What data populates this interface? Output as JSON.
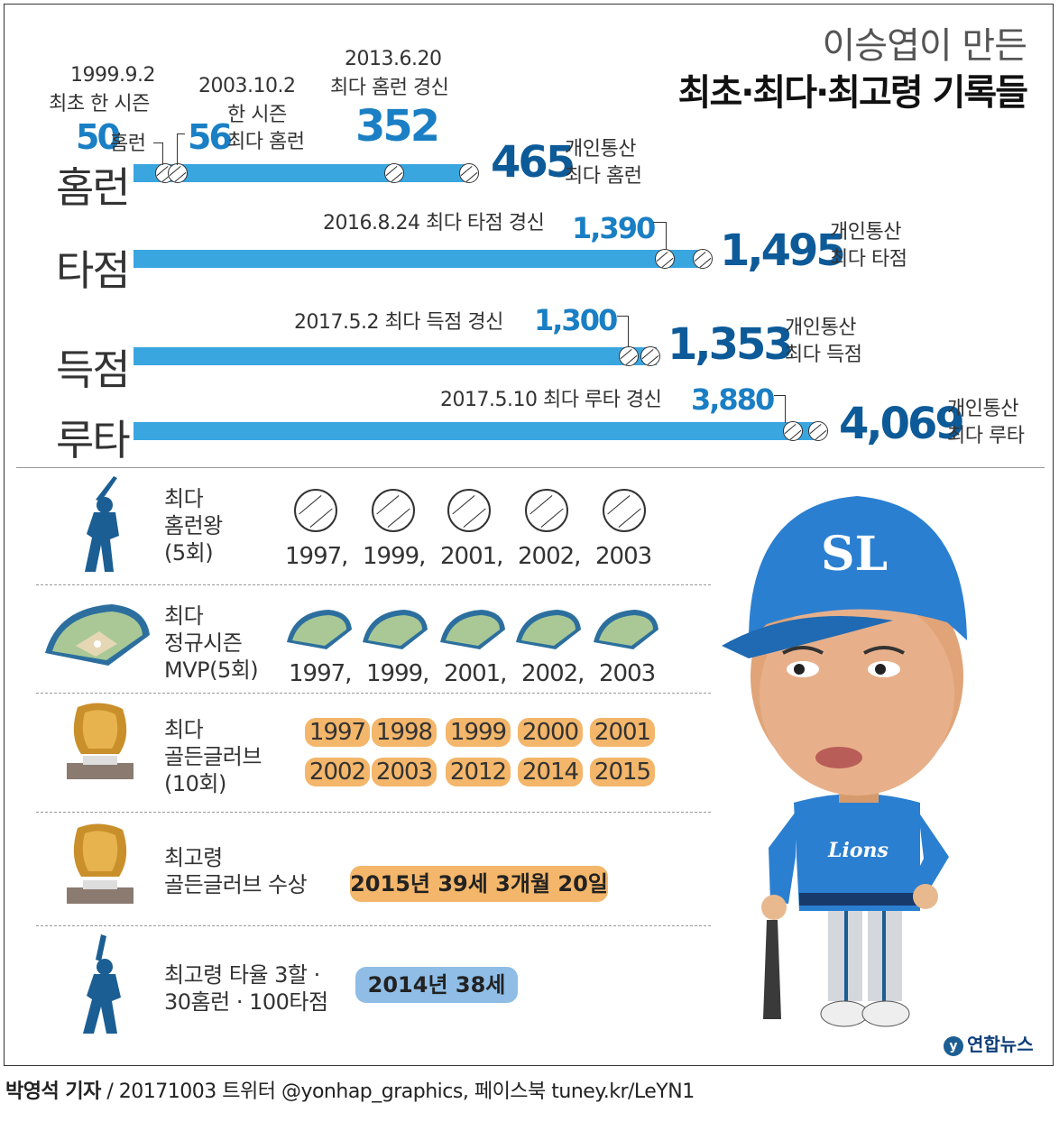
{
  "title": {
    "sub": "이승엽이 만든",
    "main": "최초·최다·최고령 기록들"
  },
  "chart_data": {
    "type": "bar",
    "categories": [
      "홈런",
      "타점",
      "득점",
      "루타"
    ],
    "values": [
      465,
      1495,
      1353,
      4069
    ],
    "milestones": {
      "homerun": [
        {
          "value": 50,
          "label_value": "50",
          "unit": "홈런",
          "date": "1999.9.2",
          "desc": "최초 한 시즌"
        },
        {
          "value": 56,
          "label_value": "56",
          "date": "2003.10.2",
          "desc1": "한 시즌",
          "desc2": "최다 홈런"
        },
        {
          "value": 352,
          "label_value": "352",
          "date": "2013.6.20",
          "desc": "최다 홈런 경신"
        },
        {
          "value": 465,
          "label_value": "465",
          "desc1": "개인통산",
          "desc2": "최다 홈런"
        }
      ],
      "rbi": [
        {
          "value": 1390,
          "label_value": "1,390",
          "desc": "2016.8.24  최다 타점 경신"
        },
        {
          "value": 1495,
          "label_value": "1,495",
          "desc1": "개인통산",
          "desc2": "최다 타점"
        }
      ],
      "runs": [
        {
          "value": 1300,
          "label_value": "1,300",
          "desc": "2017.5.2   최다 득점 경신"
        },
        {
          "value": 1353,
          "label_value": "1,353",
          "desc1": "개인통산",
          "desc2": "최다 득점"
        }
      ],
      "bases": [
        {
          "value": 3880,
          "label_value": "3,880",
          "desc": "2017.5.10  최다 루타 경신"
        },
        {
          "value": 4069,
          "label_value": "4,069",
          "desc1": "개인통산",
          "desc2": "최다 루타"
        }
      ]
    }
  },
  "sections": {
    "hr_king": {
      "line1": "최다",
      "line2": "홈런왕",
      "line3": "(5회)",
      "years": [
        "1997,",
        "1999,",
        "2001,",
        "2002,",
        "2003"
      ]
    },
    "mvp": {
      "line1": "최다",
      "line2": "정규시즌",
      "line3": "MVP(5회)",
      "years": [
        "1997,",
        "1999,",
        "2001,",
        "2002,",
        "2003"
      ]
    },
    "golden_glove": {
      "line1": "최다",
      "line2": "골든글러브",
      "line3": "(10회)",
      "years_row1": [
        "1997",
        "1998",
        "1999",
        "2000",
        "2001"
      ],
      "years_row2": [
        "2002",
        "2003",
        "2012",
        "2014",
        "2015"
      ]
    },
    "oldest_gg": {
      "line1": "최고령",
      "line2": "골든글러브 수상",
      "value": "2015년 39세 3개월 20일"
    },
    "oldest_330": {
      "line1": "최고령 타율 3할 ·",
      "line2": "30홈런 · 100타점",
      "value": "2014년 38세"
    }
  },
  "player": {
    "cap_logo": "SL",
    "jersey": "Lions"
  },
  "logo": {
    "text": "연합뉴스"
  },
  "footer": {
    "author": "박영석 기자",
    "rest": " / 20171003   트위터 @yonhap_graphics, 페이스북 tuney.kr/LeYN1"
  },
  "colors": {
    "bar": "#3aa6e0",
    "big_number": "#0d5a98",
    "milestone_number": "#1a7fc4",
    "chip": "#f3b66a",
    "pill_blue": "#8fbde6"
  }
}
